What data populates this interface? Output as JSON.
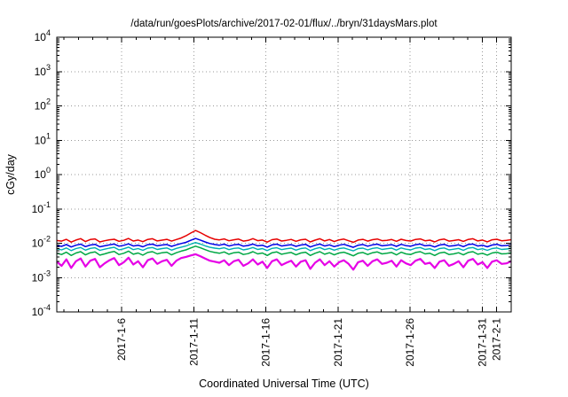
{
  "window": {
    "background": "#ffffff"
  },
  "chart_data": {
    "type": "line",
    "title": "/data/run/goesPlots/archive/2017-02-01/flux/../bryn/31daysMars.plot",
    "xlabel": "Coordinated Universal Time (UTC)",
    "ylabel": "cGy/day",
    "y_scale": "log10",
    "ylim": [
      0.0001,
      10000
    ],
    "y_tick_exponents": [
      4,
      3,
      2,
      1,
      0,
      -1,
      -2,
      -3,
      -4
    ],
    "x_domain_days": [
      1.5,
      33
    ],
    "x_ticks": [
      {
        "day": 6,
        "label": "2017-1-6"
      },
      {
        "day": 11,
        "label": "2017-1-11"
      },
      {
        "day": 16,
        "label": "2017-1-16"
      },
      {
        "day": 21,
        "label": "2017-1-21"
      },
      {
        "day": 26,
        "label": "2017-1-26"
      },
      {
        "day": 31,
        "label": "2017-1-31"
      },
      {
        "day": 32,
        "label": "2017-2-1"
      }
    ],
    "x_minor_tick_step_days": 1,
    "grid": "dotted",
    "grid_color": "#999999",
    "value_unit_scale": 0.001,
    "series": [
      {
        "name": "red",
        "color": "#e60000",
        "width": 1.5,
        "values": [
          12,
          11.5,
          13,
          10.8,
          12.4,
          13.6,
          11.2,
          12.8,
          13.4,
          10.9,
          11.8,
          12.6,
          13.1,
          11.4,
          12.2,
          13.8,
          11.6,
          12.4,
          11.1,
          12.9,
          13.5,
          11.7,
          12.3,
          13.0,
          11.5,
          12.8,
          14.2,
          16.5,
          19.8,
          23.5,
          20.4,
          17.2,
          14.6,
          13.1,
          12.5,
          13.4,
          11.8,
          12.6,
          13.2,
          11.5,
          12.1,
          13.6,
          11.9,
          12.4,
          10.8,
          12.7,
          13.3,
          11.6,
          12.2,
          12.9,
          11.4,
          12.6,
          13.1,
          10.9,
          12.3,
          13.5,
          11.7,
          12.8,
          11.2,
          12.5,
          13.2,
          11.8,
          10.7,
          12.4,
          13.0,
          11.5,
          12.7,
          13.3,
          11.9,
          12.2,
          12.8,
          11.4,
          13.1,
          12.0,
          11.6,
          12.9,
          13.4,
          11.8,
          12.3,
          10.9,
          12.6,
          13.2,
          11.5,
          12.0,
          12.7,
          11.3,
          12.9,
          13.5,
          11.7,
          12.4,
          11.0,
          12.6,
          13.1,
          11.8,
          12.2,
          12.7
        ]
      },
      {
        "name": "blue",
        "color": "#0000e6",
        "width": 1.5,
        "values": [
          8.6,
          8.1,
          9.2,
          7.8,
          8.8,
          9.4,
          8.0,
          8.9,
          9.3,
          7.9,
          8.4,
          9.0,
          9.5,
          8.2,
          8.7,
          9.6,
          8.3,
          8.8,
          7.9,
          9.1,
          9.4,
          8.4,
          8.9,
          9.2,
          8.1,
          9.0,
          9.8,
          10.6,
          12.2,
          13.8,
          12.4,
          10.9,
          9.8,
          9.2,
          8.8,
          9.4,
          8.3,
          9.0,
          9.3,
          8.2,
          8.6,
          9.5,
          8.4,
          8.8,
          7.7,
          9.0,
          9.4,
          8.3,
          8.7,
          9.1,
          8.1,
          8.9,
          9.3,
          7.8,
          8.7,
          9.5,
          8.3,
          9.0,
          8.0,
          8.8,
          9.3,
          8.4,
          7.6,
          8.8,
          9.2,
          8.2,
          9.0,
          9.4,
          8.4,
          8.7,
          9.1,
          8.1,
          9.3,
          8.5,
          8.2,
          9.1,
          9.5,
          8.4,
          8.7,
          7.8,
          8.9,
          9.3,
          8.2,
          8.5,
          9.0,
          8.0,
          9.2,
          9.5,
          8.3,
          8.8,
          7.9,
          8.9,
          9.3,
          8.4,
          8.6,
          9.0
        ]
      },
      {
        "name": "cyan",
        "color": "#00b0b0",
        "width": 1.4,
        "values": [
          6.9,
          6.4,
          7.3,
          6.1,
          7.0,
          7.5,
          6.3,
          7.1,
          7.4,
          6.2,
          6.7,
          7.2,
          7.6,
          6.4,
          6.9,
          7.7,
          6.5,
          7.0,
          6.2,
          7.2,
          7.5,
          6.6,
          7.0,
          7.3,
          6.3,
          7.1,
          7.7,
          8.3,
          9.4,
          10.5,
          9.5,
          8.4,
          7.6,
          7.2,
          6.9,
          7.4,
          6.5,
          7.1,
          7.3,
          6.4,
          6.8,
          7.5,
          6.6,
          7.0,
          6.1,
          7.1,
          7.4,
          6.5,
          6.9,
          7.2,
          6.3,
          7.0,
          7.3,
          6.1,
          6.9,
          7.5,
          6.5,
          7.1,
          6.3,
          7.0,
          7.3,
          6.6,
          6.0,
          7.0,
          7.2,
          6.4,
          7.1,
          7.4,
          6.6,
          6.9,
          7.2,
          6.3,
          7.3,
          6.7,
          6.4,
          7.2,
          7.5,
          6.6,
          6.9,
          6.1,
          7.0,
          7.3,
          6.4,
          6.7,
          7.1,
          6.2,
          7.2,
          7.5,
          6.5,
          6.9,
          6.2,
          7.0,
          7.3,
          6.6,
          6.8,
          7.1
        ]
      },
      {
        "name": "green",
        "color": "#00a844",
        "width": 1.5,
        "values": [
          5.1,
          4.7,
          5.5,
          4.4,
          5.2,
          5.7,
          4.6,
          5.3,
          5.6,
          4.5,
          4.9,
          5.4,
          5.8,
          4.7,
          5.1,
          5.9,
          4.8,
          5.2,
          4.5,
          5.4,
          5.7,
          4.9,
          5.3,
          5.5,
          4.6,
          5.3,
          5.9,
          6.4,
          7.3,
          8.2,
          7.4,
          6.5,
          5.8,
          5.4,
          5.1,
          5.6,
          4.8,
          5.3,
          5.5,
          4.7,
          5.0,
          5.7,
          4.9,
          5.2,
          4.4,
          5.3,
          5.6,
          4.8,
          5.1,
          5.4,
          4.6,
          5.2,
          5.5,
          4.4,
          5.1,
          5.7,
          4.8,
          5.3,
          4.6,
          5.2,
          5.5,
          4.9,
          4.3,
          5.1,
          5.4,
          4.7,
          5.3,
          5.6,
          4.9,
          5.1,
          5.4,
          4.6,
          5.5,
          4.9,
          4.7,
          5.4,
          5.7,
          4.9,
          5.1,
          4.4,
          5.2,
          5.5,
          4.7,
          4.9,
          5.3,
          4.6,
          5.4,
          5.7,
          4.8,
          5.1,
          4.5,
          5.2,
          5.5,
          4.9,
          5.0,
          5.3
        ]
      },
      {
        "name": "magenta",
        "color": "#e600e6",
        "width": 2.2,
        "values": [
          2.9,
          2.2,
          3.4,
          1.9,
          3.0,
          3.6,
          2.1,
          3.1,
          3.5,
          2.0,
          2.6,
          3.2,
          3.7,
          2.3,
          2.8,
          3.8,
          2.4,
          3.0,
          2.0,
          3.2,
          3.6,
          2.5,
          3.0,
          3.3,
          2.2,
          3.1,
          3.7,
          4.0,
          4.4,
          4.8,
          4.2,
          3.6,
          3.1,
          2.9,
          2.7,
          3.2,
          2.3,
          3.0,
          3.3,
          2.2,
          2.6,
          3.4,
          2.4,
          2.9,
          1.9,
          3.0,
          3.4,
          2.3,
          2.7,
          3.1,
          2.1,
          2.9,
          3.2,
          1.8,
          2.7,
          3.4,
          2.3,
          3.0,
          2.1,
          2.8,
          3.2,
          2.5,
          1.7,
          2.8,
          3.1,
          2.2,
          3.0,
          3.4,
          2.5,
          2.7,
          3.1,
          2.1,
          3.2,
          2.6,
          2.3,
          3.1,
          3.5,
          2.5,
          2.7,
          1.9,
          2.9,
          3.2,
          2.2,
          2.5,
          3.0,
          2.0,
          3.1,
          3.5,
          2.4,
          2.8,
          1.9,
          2.9,
          3.2,
          2.5,
          2.6,
          3.0
        ]
      }
    ]
  }
}
